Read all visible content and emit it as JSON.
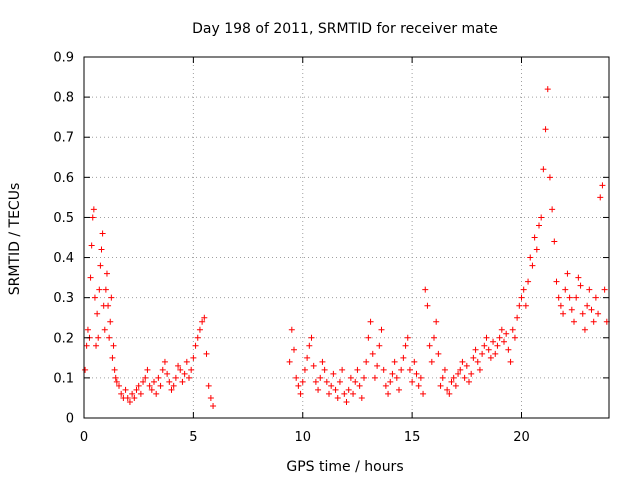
{
  "chart_data": {
    "type": "scatter",
    "title": "Day 198 of 2011, SRMTID for receiver mate",
    "xlabel": "GPS time / hours",
    "ylabel": "SRMTID / TECUs",
    "xlim": [
      0,
      24
    ],
    "ylim": [
      0,
      0.9
    ],
    "xticks": [
      0,
      5,
      10,
      15,
      20
    ],
    "xtick_labels": [
      "0",
      "5",
      "10",
      "15",
      "20"
    ],
    "yticks": [
      0,
      0.1,
      0.2,
      0.3,
      0.4,
      0.5,
      0.6,
      0.7,
      0.8,
      0.9
    ],
    "ytick_labels": [
      "0",
      "0.1",
      "0.2",
      "0.3",
      "0.4",
      "0.5",
      "0.6",
      "0.7",
      "0.8",
      "0.9"
    ],
    "grid": true,
    "marker": "+",
    "marker_color": "#ff0000",
    "data_gap_hours": [
      6.0,
      9.3
    ],
    "series": [
      {
        "name": "SRMTID",
        "x": [
          0.05,
          0.12,
          0.18,
          0.25,
          0.3,
          0.35,
          0.4,
          0.45,
          0.5,
          0.55,
          0.6,
          0.65,
          0.7,
          0.75,
          0.8,
          0.85,
          0.9,
          0.95,
          1.0,
          1.05,
          1.1,
          1.15,
          1.2,
          1.25,
          1.3,
          1.35,
          1.4,
          1.45,
          1.5,
          1.6,
          1.7,
          1.8,
          1.9,
          2.0,
          2.1,
          2.2,
          2.3,
          2.4,
          2.5,
          2.6,
          2.7,
          2.8,
          2.9,
          3.0,
          3.1,
          3.2,
          3.3,
          3.4,
          3.5,
          3.6,
          3.7,
          3.8,
          3.9,
          4.0,
          4.1,
          4.2,
          4.3,
          4.4,
          4.5,
          4.6,
          4.7,
          4.8,
          4.9,
          5.0,
          5.1,
          5.2,
          5.3,
          5.4,
          5.5,
          5.6,
          5.7,
          5.8,
          5.9,
          9.4,
          9.5,
          9.6,
          9.7,
          9.8,
          9.9,
          10.0,
          10.1,
          10.2,
          10.3,
          10.4,
          10.5,
          10.6,
          10.7,
          10.8,
          10.9,
          11.0,
          11.1,
          11.2,
          11.3,
          11.4,
          11.5,
          11.6,
          11.7,
          11.8,
          11.9,
          12.0,
          12.1,
          12.2,
          12.3,
          12.4,
          12.5,
          12.6,
          12.7,
          12.8,
          12.9,
          13.0,
          13.1,
          13.2,
          13.3,
          13.4,
          13.5,
          13.6,
          13.7,
          13.8,
          13.9,
          14.0,
          14.1,
          14.2,
          14.3,
          14.4,
          14.5,
          14.6,
          14.7,
          14.8,
          14.9,
          15.0,
          15.1,
          15.2,
          15.3,
          15.4,
          15.5,
          15.6,
          15.7,
          15.8,
          15.9,
          16.0,
          16.1,
          16.2,
          16.3,
          16.4,
          16.5,
          16.6,
          16.7,
          16.8,
          16.9,
          17.0,
          17.1,
          17.2,
          17.3,
          17.4,
          17.5,
          17.6,
          17.7,
          17.8,
          17.9,
          18.0,
          18.1,
          18.2,
          18.3,
          18.4,
          18.5,
          18.6,
          18.7,
          18.8,
          18.9,
          19.0,
          19.1,
          19.2,
          19.3,
          19.4,
          19.5,
          19.6,
          19.7,
          19.8,
          19.9,
          20.0,
          20.1,
          20.2,
          20.3,
          20.4,
          20.5,
          20.6,
          20.7,
          20.8,
          20.9,
          21.0,
          21.1,
          21.2,
          21.3,
          21.4,
          21.5,
          21.6,
          21.7,
          21.8,
          21.9,
          22.0,
          22.1,
          22.2,
          22.3,
          22.4,
          22.5,
          22.6,
          22.7,
          22.8,
          22.9,
          23.0,
          23.1,
          23.2,
          23.3,
          23.4,
          23.5,
          23.6,
          23.7,
          23.8,
          23.9
        ],
        "y": [
          0.12,
          0.18,
          0.22,
          0.2,
          0.35,
          0.43,
          0.5,
          0.52,
          0.3,
          0.18,
          0.26,
          0.2,
          0.32,
          0.38,
          0.42,
          0.46,
          0.28,
          0.22,
          0.32,
          0.36,
          0.28,
          0.2,
          0.24,
          0.3,
          0.15,
          0.18,
          0.12,
          0.1,
          0.09,
          0.08,
          0.06,
          0.05,
          0.07,
          0.05,
          0.04,
          0.06,
          0.05,
          0.07,
          0.08,
          0.06,
          0.09,
          0.1,
          0.12,
          0.08,
          0.07,
          0.09,
          0.06,
          0.1,
          0.08,
          0.12,
          0.14,
          0.11,
          0.09,
          0.07,
          0.08,
          0.1,
          0.13,
          0.12,
          0.09,
          0.11,
          0.14,
          0.1,
          0.12,
          0.15,
          0.18,
          0.2,
          0.22,
          0.24,
          0.25,
          0.16,
          0.08,
          0.05,
          0.03,
          0.14,
          0.22,
          0.17,
          0.1,
          0.08,
          0.06,
          0.09,
          0.12,
          0.15,
          0.18,
          0.2,
          0.13,
          0.09,
          0.07,
          0.1,
          0.14,
          0.12,
          0.09,
          0.06,
          0.08,
          0.11,
          0.07,
          0.05,
          0.09,
          0.12,
          0.06,
          0.04,
          0.07,
          0.1,
          0.06,
          0.09,
          0.12,
          0.08,
          0.05,
          0.1,
          0.14,
          0.2,
          0.24,
          0.16,
          0.1,
          0.13,
          0.18,
          0.22,
          0.12,
          0.08,
          0.06,
          0.09,
          0.11,
          0.14,
          0.1,
          0.07,
          0.12,
          0.15,
          0.18,
          0.2,
          0.12,
          0.09,
          0.14,
          0.11,
          0.08,
          0.1,
          0.06,
          0.32,
          0.28,
          0.18,
          0.14,
          0.2,
          0.24,
          0.16,
          0.08,
          0.1,
          0.12,
          0.07,
          0.06,
          0.09,
          0.1,
          0.08,
          0.11,
          0.12,
          0.14,
          0.1,
          0.13,
          0.09,
          0.11,
          0.15,
          0.17,
          0.14,
          0.12,
          0.16,
          0.18,
          0.2,
          0.17,
          0.15,
          0.19,
          0.16,
          0.18,
          0.2,
          0.22,
          0.19,
          0.21,
          0.17,
          0.14,
          0.22,
          0.2,
          0.25,
          0.28,
          0.3,
          0.32,
          0.28,
          0.34,
          0.4,
          0.38,
          0.45,
          0.42,
          0.48,
          0.5,
          0.62,
          0.72,
          0.82,
          0.6,
          0.52,
          0.44,
          0.34,
          0.3,
          0.28,
          0.26,
          0.32,
          0.36,
          0.3,
          0.27,
          0.24,
          0.3,
          0.35,
          0.33,
          0.26,
          0.22,
          0.28,
          0.32,
          0.27,
          0.24,
          0.3,
          0.26,
          0.55,
          0.58,
          0.32,
          0.24
        ]
      }
    ]
  }
}
